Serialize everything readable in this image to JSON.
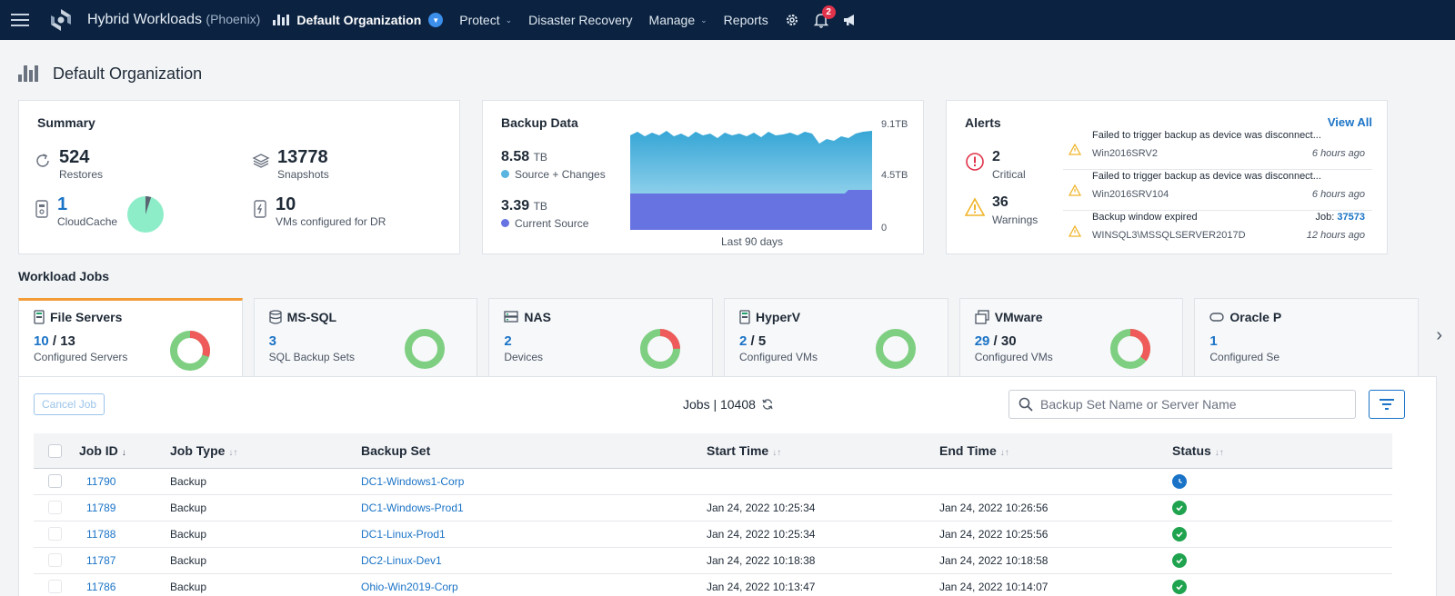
{
  "nav": {
    "brand": "Hybrid Workloads",
    "brand_sub": "(Phoenix)",
    "org": "Default Organization",
    "items": [
      "Protect",
      "Disaster Recovery",
      "Manage",
      "Reports"
    ],
    "notification_count": "2"
  },
  "page": {
    "title": "Default Organization"
  },
  "summary": {
    "title": "Summary",
    "restores": {
      "value": "524",
      "label": "Restores"
    },
    "snapshots": {
      "value": "13778",
      "label": "Snapshots"
    },
    "cloudcache": {
      "value": "1",
      "label": "CloudCache"
    },
    "vms_dr": {
      "value": "10",
      "label": "VMs configured for DR"
    }
  },
  "backup": {
    "title": "Backup Data",
    "source_changes": {
      "value": "8.58",
      "unit": "TB",
      "label": "Source + Changes"
    },
    "current_source": {
      "value": "3.39",
      "unit": "TB",
      "label": "Current Source"
    },
    "axis": [
      "9.1TB",
      "4.5TB",
      "0"
    ],
    "caption": "Last 90 days",
    "colors": {
      "source_changes": "#5ab4e0",
      "current_source": "#6673e0"
    }
  },
  "alerts": {
    "title": "Alerts",
    "view_all": "View All",
    "critical": {
      "value": "2",
      "label": "Critical"
    },
    "warnings": {
      "value": "36",
      "label": "Warnings"
    },
    "items": [
      {
        "message": "Failed to trigger backup as device was disconnect...",
        "device": "Win2016SRV2",
        "time": "6 hours ago",
        "job_label": "",
        "job_id": ""
      },
      {
        "message": "Failed to trigger backup as device was disconnect...",
        "device": "Win2016SRV104",
        "time": "6 hours ago",
        "job_label": "",
        "job_id": ""
      },
      {
        "message": "Backup window expired",
        "device": "WINSQL3\\MSSQLSERVER2017D",
        "time": "12 hours ago",
        "job_label": "Job:",
        "job_id": "37573"
      }
    ]
  },
  "workload": {
    "title": "Workload Jobs",
    "tabs": [
      {
        "name": "File Servers",
        "value": "10",
        "total": "13",
        "label": "Configured Servers"
      },
      {
        "name": "MS-SQL",
        "value": "3",
        "total": "",
        "label": "SQL Backup Sets"
      },
      {
        "name": "NAS",
        "value": "2",
        "total": "",
        "label": "Devices"
      },
      {
        "name": "HyperV",
        "value": "2",
        "total": "5",
        "label": "Configured VMs"
      },
      {
        "name": "VMware",
        "value": "29",
        "total": "30",
        "label": "Configured VMs"
      },
      {
        "name": "Oracle P",
        "value": "1",
        "total": "",
        "label": "Configured Se"
      }
    ]
  },
  "jobs": {
    "cancel_label": "Cancel Job",
    "count_label": "Jobs | 10408",
    "search_placeholder": "Backup Set Name or Server Name",
    "columns": [
      "Job ID",
      "Job Type",
      "Backup Set",
      "Start Time",
      "End Time",
      "Status"
    ],
    "rows": [
      {
        "id": "11790",
        "type": "Backup",
        "set": "DC1-Windows1-Corp",
        "start": "",
        "end": "",
        "status": "running"
      },
      {
        "id": "11789",
        "type": "Backup",
        "set": "DC1-Windows-Prod1",
        "start": "Jan 24, 2022 10:25:34",
        "end": "Jan 24, 2022 10:26:56",
        "status": "success"
      },
      {
        "id": "11788",
        "type": "Backup",
        "set": "DC1-Linux-Prod1",
        "start": "Jan 24, 2022 10:25:34",
        "end": "Jan 24, 2022 10:25:56",
        "status": "success"
      },
      {
        "id": "11787",
        "type": "Backup",
        "set": "DC2-Linux-Dev1",
        "start": "Jan 24, 2022 10:18:38",
        "end": "Jan 24, 2022 10:18:58",
        "status": "success"
      },
      {
        "id": "11786",
        "type": "Backup",
        "set": "Ohio-Win2019-Corp",
        "start": "Jan 24, 2022 10:13:47",
        "end": "Jan 24, 2022 10:14:07",
        "status": "success"
      }
    ]
  }
}
